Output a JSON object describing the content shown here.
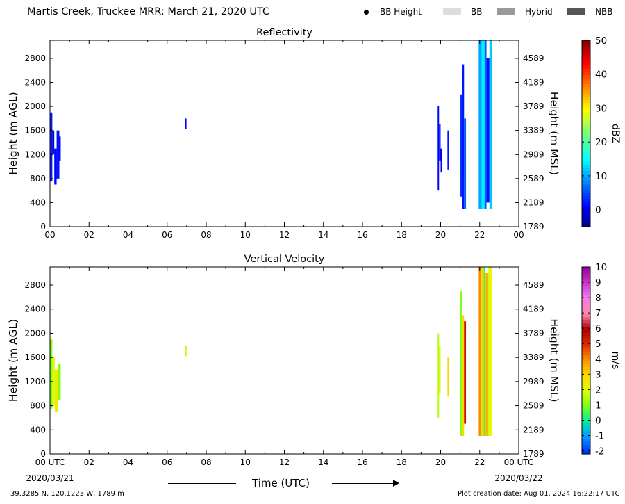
{
  "header": {
    "title": "Martis Creek, Truckee MRR:  March 21, 2020 UTC",
    "legend": [
      {
        "label": "BB Height",
        "kind": "dot",
        "color": "#000000"
      },
      {
        "label": "BB",
        "kind": "swatch",
        "color": "#dcdcdc"
      },
      {
        "label": "Hybrid",
        "kind": "swatch",
        "color": "#9a9a9a"
      },
      {
        "label": "NBB",
        "kind": "swatch",
        "color": "#555555"
      }
    ]
  },
  "footer": {
    "coords": "39.3285 N, 120.1223 W, 1789 m",
    "created": "Plot creation date: Aug 01, 2024 16:22:17 UTC",
    "xlabel": "Time (UTC)"
  },
  "chart_data": [
    {
      "type": "heatmap",
      "title": "Reflectivity",
      "ylabel": "Height (m AGL)",
      "ylabel_right": "Height (m MSL)",
      "xlim": [
        0,
        24
      ],
      "ylim": [
        0,
        3100
      ],
      "x_ticks": [
        "00",
        "02",
        "04",
        "06",
        "08",
        "10",
        "12",
        "14",
        "16",
        "18",
        "20",
        "22",
        "00"
      ],
      "y_ticks": [
        0,
        400,
        800,
        1200,
        1600,
        2000,
        2400,
        2800
      ],
      "y_ticks_right": [
        "1789",
        "2189",
        "2589",
        "2989",
        "3389",
        "3789",
        "4189",
        "4589"
      ],
      "colorbar": {
        "label": "dBZ",
        "min": -5,
        "max": 50,
        "ticks": [
          0,
          10,
          20,
          30,
          40,
          50
        ]
      },
      "cells": [
        {
          "x": [
            0.02,
            0.12
          ],
          "y": [
            750,
            1900
          ],
          "value": 2
        },
        {
          "x": [
            0.12,
            0.22
          ],
          "y": [
            1200,
            1600
          ],
          "value": 0
        },
        {
          "x": [
            0.22,
            0.34
          ],
          "y": [
            700,
            1300
          ],
          "value": 1
        },
        {
          "x": [
            0.34,
            0.48
          ],
          "y": [
            800,
            1600
          ],
          "value": 2
        },
        {
          "x": [
            0.48,
            0.55
          ],
          "y": [
            1100,
            1500
          ],
          "value": 1
        },
        {
          "x": [
            6.93,
            6.99
          ],
          "y": [
            1620,
            1800
          ],
          "value": 1
        },
        {
          "x": [
            19.85,
            19.92
          ],
          "y": [
            600,
            2000
          ],
          "value": 1
        },
        {
          "x": [
            19.92,
            20.0
          ],
          "y": [
            1100,
            1700
          ],
          "value": 2
        },
        {
          "x": [
            20.0,
            20.06
          ],
          "y": [
            900,
            1300
          ],
          "value": 0
        },
        {
          "x": [
            20.35,
            20.42
          ],
          "y": [
            950,
            1600
          ],
          "value": 2
        },
        {
          "x": [
            21.0,
            21.1
          ],
          "y": [
            500,
            2200
          ],
          "value": 4
        },
        {
          "x": [
            21.1,
            21.2
          ],
          "y": [
            300,
            2700
          ],
          "value": 2
        },
        {
          "x": [
            21.2,
            21.3
          ],
          "y": [
            300,
            1800
          ],
          "value": 6
        },
        {
          "x": [
            21.95,
            22.1
          ],
          "y": [
            300,
            3100
          ],
          "value": 10
        },
        {
          "x": [
            22.1,
            22.25
          ],
          "y": [
            300,
            3100
          ],
          "value": 14
        },
        {
          "x": [
            22.25,
            22.35
          ],
          "y": [
            300,
            3100
          ],
          "value": 6
        },
        {
          "x": [
            22.35,
            22.5
          ],
          "y": [
            400,
            2800
          ],
          "value": 2
        },
        {
          "x": [
            22.5,
            22.62
          ],
          "y": [
            300,
            3100
          ],
          "value": 12
        }
      ]
    },
    {
      "type": "heatmap",
      "title": "Vertical Velocity",
      "ylabel": "Height (m AGL)",
      "ylabel_right": "Height (m MSL)",
      "xlim": [
        0,
        24
      ],
      "ylim": [
        0,
        3100
      ],
      "x_ticks": [
        "00 UTC",
        "02",
        "04",
        "06",
        "08",
        "10",
        "12",
        "14",
        "16",
        "18",
        "20",
        "22",
        "00 UTC"
      ],
      "x_date_left": "2020/03/21",
      "x_date_right": "2020/03/22",
      "y_ticks": [
        0,
        400,
        800,
        1200,
        1600,
        2000,
        2400,
        2800
      ],
      "y_ticks_right": [
        "1789",
        "2189",
        "2589",
        "2989",
        "3389",
        "3789",
        "4189",
        "4589"
      ],
      "colorbar": {
        "label": "m/s",
        "min": -2.2,
        "max": 10,
        "ticks": [
          -2,
          -1,
          0,
          1,
          2,
          3,
          4,
          5,
          6,
          7,
          8,
          9,
          10
        ]
      },
      "cells": [
        {
          "x": [
            0.02,
            0.12
          ],
          "y": [
            750,
            1900
          ],
          "value": 1
        },
        {
          "x": [
            0.12,
            0.25
          ],
          "y": [
            800,
            1600
          ],
          "value": 2
        },
        {
          "x": [
            0.25,
            0.4
          ],
          "y": [
            700,
            1400
          ],
          "value": 2.5
        },
        {
          "x": [
            0.4,
            0.55
          ],
          "y": [
            900,
            1500
          ],
          "value": 1
        },
        {
          "x": [
            6.93,
            6.99
          ],
          "y": [
            1620,
            1800
          ],
          "value": 1.5
        },
        {
          "x": [
            19.85,
            19.92
          ],
          "y": [
            600,
            2000
          ],
          "value": 1.5
        },
        {
          "x": [
            19.92,
            20.0
          ],
          "y": [
            1000,
            1800
          ],
          "value": 2.5
        },
        {
          "x": [
            20.35,
            20.42
          ],
          "y": [
            950,
            1600
          ],
          "value": 3
        },
        {
          "x": [
            21.0,
            21.1
          ],
          "y": [
            300,
            2700
          ],
          "value": 1
        },
        {
          "x": [
            21.1,
            21.2
          ],
          "y": [
            300,
            2300
          ],
          "value": 3
        },
        {
          "x": [
            21.2,
            21.3
          ],
          "y": [
            500,
            2200
          ],
          "value": 5.5
        },
        {
          "x": [
            21.95,
            22.05
          ],
          "y": [
            300,
            3100
          ],
          "value": 4
        },
        {
          "x": [
            22.05,
            22.2
          ],
          "y": [
            300,
            3100
          ],
          "value": 3
        },
        {
          "x": [
            22.2,
            22.3
          ],
          "y": [
            300,
            3100
          ],
          "value": 0.5
        },
        {
          "x": [
            22.3,
            22.45
          ],
          "y": [
            300,
            3000
          ],
          "value": 3.5
        },
        {
          "x": [
            22.45,
            22.62
          ],
          "y": [
            300,
            3100
          ],
          "value": 2
        }
      ]
    }
  ]
}
